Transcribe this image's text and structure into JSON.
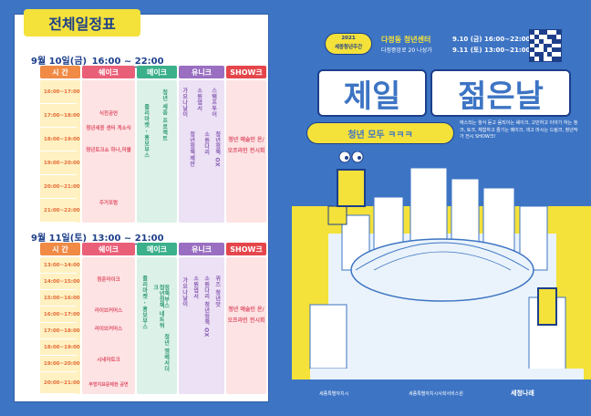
{
  "left": {
    "title": "전체일정표",
    "headers": [
      "시 간",
      "쉐이크",
      "메이크",
      "유니크",
      "SHOW크"
    ],
    "day1": {
      "date": "9월 10일(금)",
      "time": "16:00 ~ 22:00",
      "times": [
        "16:00~17:00",
        "17:00~18:00",
        "18:00~19:00",
        "19:00~20:00",
        "20:00~21:00",
        "21:00~22:00"
      ],
      "shake": [
        "식전공연",
        "청년세종 센터 게소식",
        "청년토크쇼 하나,마블",
        "주거포럼"
      ],
      "make": [
        "플리마켓 · 홍보부스",
        "청년 세종 프로젝트"
      ],
      "unique": [
        "가요나날이",
        "소원엽서",
        "청년정책제안",
        "소원다리",
        "청년인생사진",
        "스탬프투어",
        "청년정책 OX"
      ],
      "show": "청년 예술인 온/오프라인 전시회"
    },
    "day2": {
      "date": "9월 11일(토)",
      "time": "13:00 ~ 21:00",
      "times": [
        "13:00~14:00",
        "14:00~15:00",
        "15:00~16:00",
        "16:00~17:00",
        "17:00~18:00",
        "18:00~19:00",
        "19:00~20:00",
        "20:00~21:00"
      ],
      "shake": [
        "청춘마이크",
        "라이브커머스",
        "라이브커머스",
        "시네마토크",
        "무형지표문제현 공연"
      ],
      "make": [
        "플리마켓 · 홍보부스",
        "청년정책 네트워크",
        "정책부스",
        "청년 엠베서더"
      ],
      "unique": [
        "가요나날이",
        "소원엽서",
        "청년정책제안",
        "스탬프투어",
        "청년 인생사진",
        "소원다리 청년정책 OX",
        "퀴즈 청년맛"
      ],
      "show": "청년 예술인 온/오프라인 전시회"
    }
  },
  "poster": {
    "badge_year": "2021",
    "badge_label": "세종청년주간",
    "venue": "다정동 청년센터",
    "address": "다정중앙로 20 나성가",
    "date1": "9.10 (금) 16:00~22:00",
    "date2": "9.11 (토) 13:00~21:00",
    "title1": "제일",
    "title2": "젊은날",
    "subtitle": "청년 모두 ㅋㅋㅋ",
    "description": "애스되는 월식 듣고 움직이는 쉐이크, 고민하고 이야기 하는 청크, 토크, 체험하고 즐기는 메이크, 색고 마시는 드림크, 청년작가 전시 SHOW크!",
    "logos": [
      "세종특별자치시",
      "세종특별자치시사회서비스원",
      "세청나래"
    ]
  },
  "colors": {
    "blue": "#3d74c4",
    "yellow": "#f4e13a",
    "orange": "#f08a45",
    "pink": "#ea5f78",
    "green": "#3bb08a",
    "purple": "#9a6fc1",
    "red": "#e5464b"
  }
}
